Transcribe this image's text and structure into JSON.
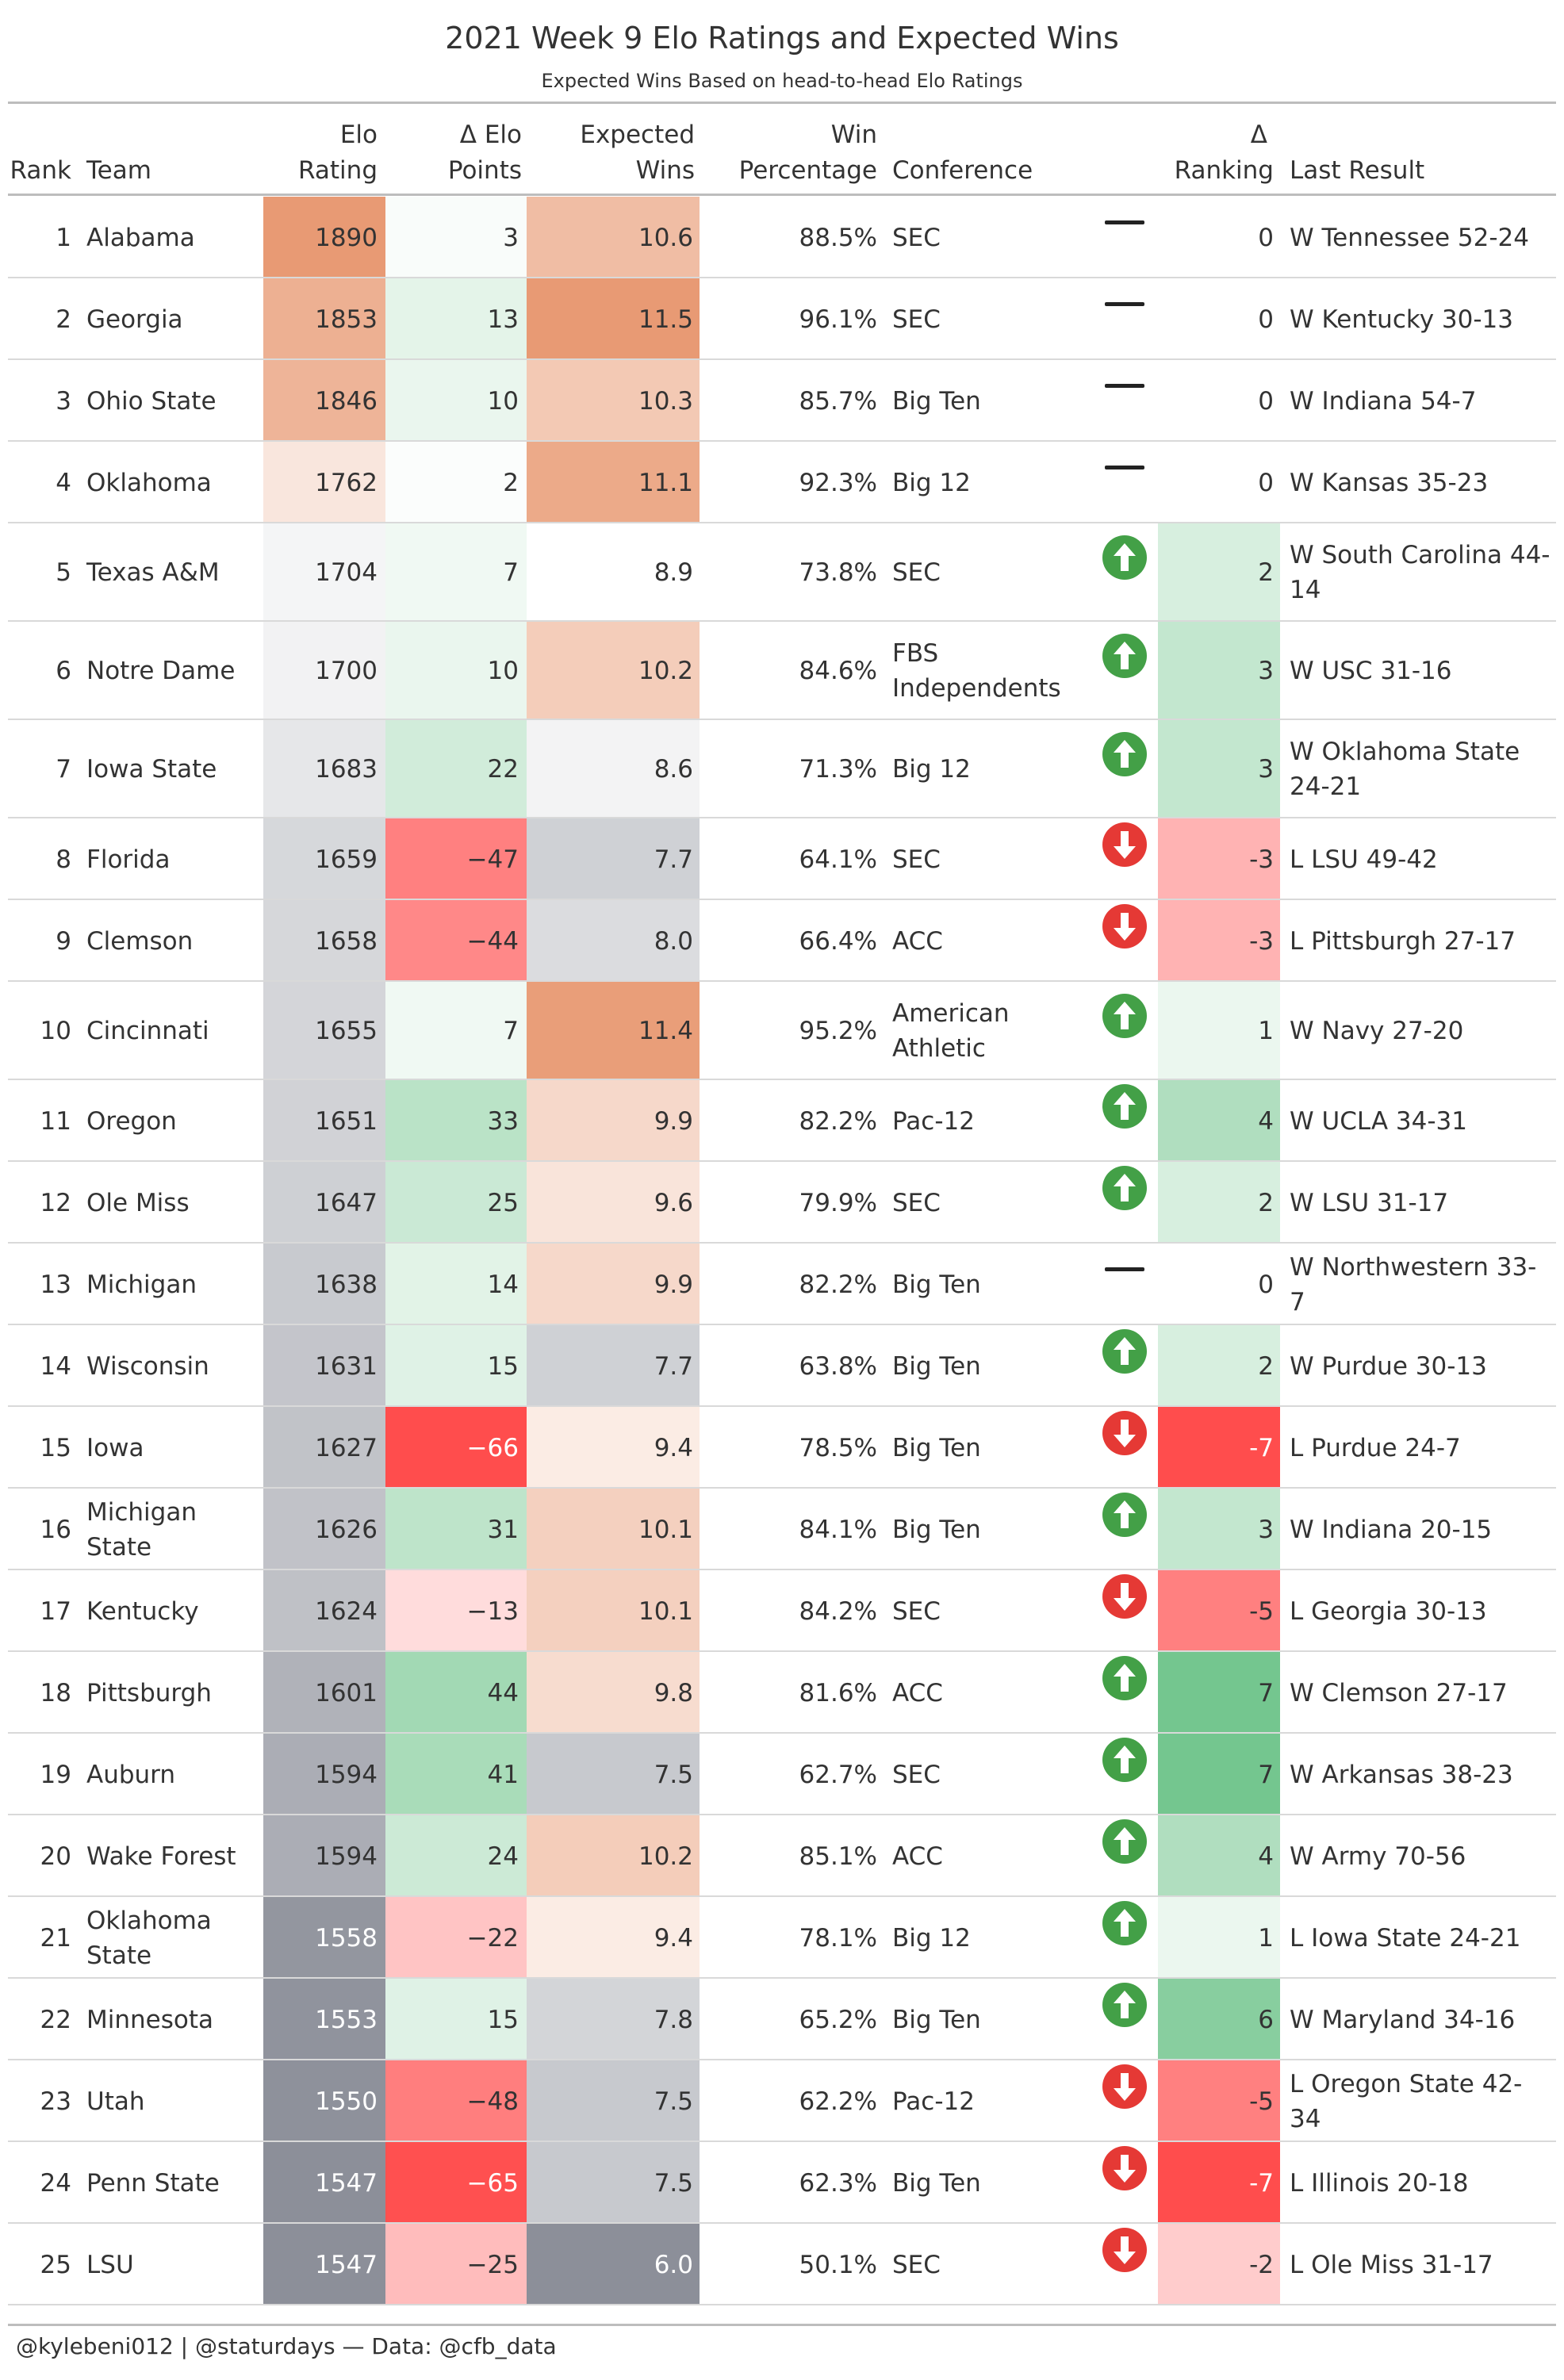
{
  "title": "2021 Week 9 Elo Ratings and Expected Wins",
  "subtitle": "Expected Wins Based on head-to-head Elo Ratings",
  "footer": "@kylebeni012 | @staturdays — Data: @cfb_data",
  "headers": {
    "rank": "Rank",
    "team": "Team",
    "elo_line1": "Elo",
    "elo_line2": "Rating",
    "delta_elo_line1": "Δ Elo",
    "delta_elo_line2": "Points",
    "exp_wins_line1": "Expected",
    "exp_wins_line2": "Wins",
    "win_pct_line1": "Win",
    "win_pct_line2": "Percentage",
    "conference": "Conference",
    "delta_rank_line1": "Δ",
    "delta_rank_line2": "Ranking",
    "last_result": "Last Result"
  },
  "colors": {
    "up_arrow": "#43a047",
    "down_arrow": "#e53935",
    "no_change": "#222222",
    "positive_strong": "#74c68f",
    "negative_strong": "#ff4d4d",
    "high_warm": "#e89a74",
    "low_gray": "#8c8f99"
  },
  "chart_data": {
    "type": "table",
    "columns": [
      "Rank",
      "Team",
      "Elo Rating",
      "Δ Elo Points",
      "Expected Wins",
      "Win Percentage",
      "Conference",
      "Δ Ranking",
      "Last Result"
    ],
    "rows": [
      {
        "rank": "1",
        "team": "Alabama",
        "elo": "1890",
        "delta_elo": "3",
        "expected_wins": "10.6",
        "win_pct": "88.5%",
        "conference": "SEC",
        "trend": "none",
        "delta_rank": "0",
        "last_result": "W Tennessee 52-24"
      },
      {
        "rank": "2",
        "team": "Georgia",
        "elo": "1853",
        "delta_elo": "13",
        "expected_wins": "11.5",
        "win_pct": "96.1%",
        "conference": "SEC",
        "trend": "none",
        "delta_rank": "0",
        "last_result": "W Kentucky 30-13"
      },
      {
        "rank": "3",
        "team": "Ohio State",
        "elo": "1846",
        "delta_elo": "10",
        "expected_wins": "10.3",
        "win_pct": "85.7%",
        "conference": "Big Ten",
        "trend": "none",
        "delta_rank": "0",
        "last_result": "W Indiana 54-7"
      },
      {
        "rank": "4",
        "team": "Oklahoma",
        "elo": "1762",
        "delta_elo": "2",
        "expected_wins": "11.1",
        "win_pct": "92.3%",
        "conference": "Big 12",
        "trend": "none",
        "delta_rank": "0",
        "last_result": "W Kansas 35-23"
      },
      {
        "rank": "5",
        "team": "Texas A&M",
        "elo": "1704",
        "delta_elo": "7",
        "expected_wins": "8.9",
        "win_pct": "73.8%",
        "conference": "SEC",
        "trend": "up",
        "delta_rank": "2",
        "last_result": "W South Carolina 44-14"
      },
      {
        "rank": "6",
        "team": "Notre Dame",
        "elo": "1700",
        "delta_elo": "10",
        "expected_wins": "10.2",
        "win_pct": "84.6%",
        "conference": "FBS Independents",
        "trend": "up",
        "delta_rank": "3",
        "last_result": "W USC 31-16"
      },
      {
        "rank": "7",
        "team": "Iowa State",
        "elo": "1683",
        "delta_elo": "22",
        "expected_wins": "8.6",
        "win_pct": "71.3%",
        "conference": "Big 12",
        "trend": "up",
        "delta_rank": "3",
        "last_result": "W Oklahoma State 24-21"
      },
      {
        "rank": "8",
        "team": "Florida",
        "elo": "1659",
        "delta_elo": "−47",
        "expected_wins": "7.7",
        "win_pct": "64.1%",
        "conference": "SEC",
        "trend": "down",
        "delta_rank": "-3",
        "last_result": "L LSU 49-42"
      },
      {
        "rank": "9",
        "team": "Clemson",
        "elo": "1658",
        "delta_elo": "−44",
        "expected_wins": "8.0",
        "win_pct": "66.4%",
        "conference": "ACC",
        "trend": "down",
        "delta_rank": "-3",
        "last_result": "L Pittsburgh 27-17"
      },
      {
        "rank": "10",
        "team": "Cincinnati",
        "elo": "1655",
        "delta_elo": "7",
        "expected_wins": "11.4",
        "win_pct": "95.2%",
        "conference": "American Athletic",
        "trend": "up",
        "delta_rank": "1",
        "last_result": "W Navy 27-20"
      },
      {
        "rank": "11",
        "team": "Oregon",
        "elo": "1651",
        "delta_elo": "33",
        "expected_wins": "9.9",
        "win_pct": "82.2%",
        "conference": "Pac-12",
        "trend": "up",
        "delta_rank": "4",
        "last_result": "W UCLA 34-31"
      },
      {
        "rank": "12",
        "team": "Ole Miss",
        "elo": "1647",
        "delta_elo": "25",
        "expected_wins": "9.6",
        "win_pct": "79.9%",
        "conference": "SEC",
        "trend": "up",
        "delta_rank": "2",
        "last_result": "W LSU 31-17"
      },
      {
        "rank": "13",
        "team": "Michigan",
        "elo": "1638",
        "delta_elo": "14",
        "expected_wins": "9.9",
        "win_pct": "82.2%",
        "conference": "Big Ten",
        "trend": "none",
        "delta_rank": "0",
        "last_result": "W Northwestern 33-7"
      },
      {
        "rank": "14",
        "team": "Wisconsin",
        "elo": "1631",
        "delta_elo": "15",
        "expected_wins": "7.7",
        "win_pct": "63.8%",
        "conference": "Big Ten",
        "trend": "up",
        "delta_rank": "2",
        "last_result": "W Purdue 30-13"
      },
      {
        "rank": "15",
        "team": "Iowa",
        "elo": "1627",
        "delta_elo": "−66",
        "expected_wins": "9.4",
        "win_pct": "78.5%",
        "conference": "Big Ten",
        "trend": "down",
        "delta_rank": "-7",
        "last_result": "L Purdue 24-7"
      },
      {
        "rank": "16",
        "team": "Michigan State",
        "elo": "1626",
        "delta_elo": "31",
        "expected_wins": "10.1",
        "win_pct": "84.1%",
        "conference": "Big Ten",
        "trend": "up",
        "delta_rank": "3",
        "last_result": "W Indiana 20-15"
      },
      {
        "rank": "17",
        "team": "Kentucky",
        "elo": "1624",
        "delta_elo": "−13",
        "expected_wins": "10.1",
        "win_pct": "84.2%",
        "conference": "SEC",
        "trend": "down",
        "delta_rank": "-5",
        "last_result": "L Georgia 30-13"
      },
      {
        "rank": "18",
        "team": "Pittsburgh",
        "elo": "1601",
        "delta_elo": "44",
        "expected_wins": "9.8",
        "win_pct": "81.6%",
        "conference": "ACC",
        "trend": "up",
        "delta_rank": "7",
        "last_result": "W Clemson 27-17"
      },
      {
        "rank": "19",
        "team": "Auburn",
        "elo": "1594",
        "delta_elo": "41",
        "expected_wins": "7.5",
        "win_pct": "62.7%",
        "conference": "SEC",
        "trend": "up",
        "delta_rank": "7",
        "last_result": "W Arkansas 38-23"
      },
      {
        "rank": "20",
        "team": "Wake Forest",
        "elo": "1594",
        "delta_elo": "24",
        "expected_wins": "10.2",
        "win_pct": "85.1%",
        "conference": "ACC",
        "trend": "up",
        "delta_rank": "4",
        "last_result": "W Army 70-56"
      },
      {
        "rank": "21",
        "team": "Oklahoma State",
        "elo": "1558",
        "delta_elo": "−22",
        "expected_wins": "9.4",
        "win_pct": "78.1%",
        "conference": "Big 12",
        "trend": "up",
        "delta_rank": "1",
        "last_result": "L Iowa State 24-21"
      },
      {
        "rank": "22",
        "team": "Minnesota",
        "elo": "1553",
        "delta_elo": "15",
        "expected_wins": "7.8",
        "win_pct": "65.2%",
        "conference": "Big Ten",
        "trend": "up",
        "delta_rank": "6",
        "last_result": "W Maryland 34-16"
      },
      {
        "rank": "23",
        "team": "Utah",
        "elo": "1550",
        "delta_elo": "−48",
        "expected_wins": "7.5",
        "win_pct": "62.2%",
        "conference": "Pac-12",
        "trend": "down",
        "delta_rank": "-5",
        "last_result": "L Oregon State 42-34"
      },
      {
        "rank": "24",
        "team": "Penn State",
        "elo": "1547",
        "delta_elo": "−65",
        "expected_wins": "7.5",
        "win_pct": "62.3%",
        "conference": "Big Ten",
        "trend": "down",
        "delta_rank": "-7",
        "last_result": "L Illinois 20-18"
      },
      {
        "rank": "25",
        "team": "LSU",
        "elo": "1547",
        "delta_elo": "−25",
        "expected_wins": "6.0",
        "win_pct": "50.1%",
        "conference": "SEC",
        "trend": "down",
        "delta_rank": "-2",
        "last_result": "L Ole Miss 31-17"
      }
    ]
  }
}
